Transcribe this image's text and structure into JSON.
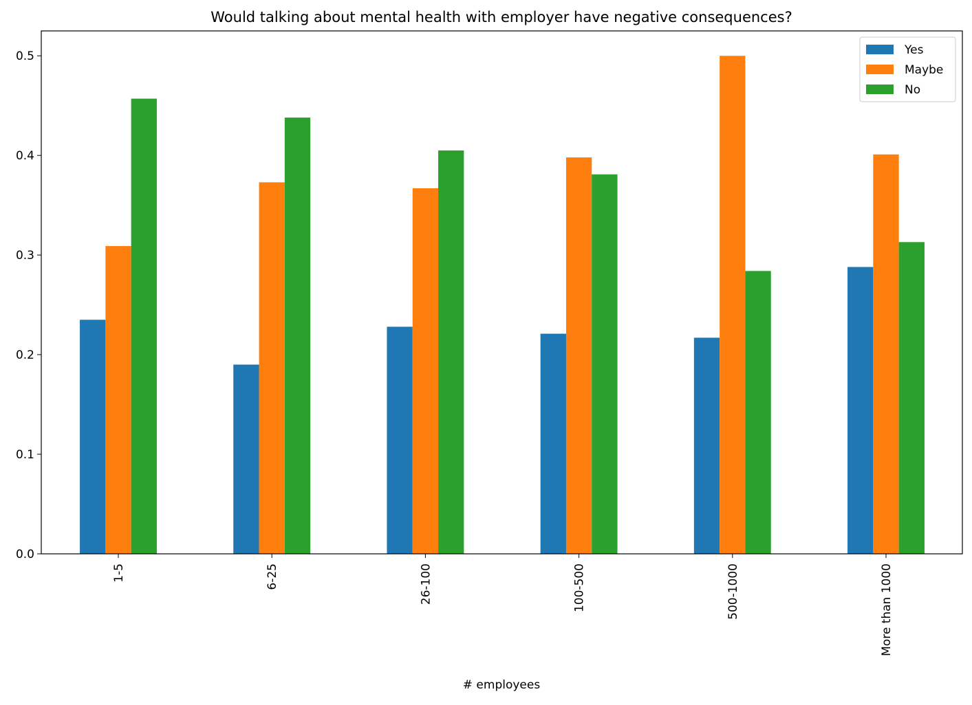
{
  "chart_data": {
    "type": "bar",
    "title": "Would talking about mental health with employer have negative consequences?",
    "xlabel": "# employees",
    "ylabel": "",
    "categories": [
      "1-5",
      "6-25",
      "26-100",
      "100-500",
      "500-1000",
      "More than 1000"
    ],
    "series": [
      {
        "name": "Yes",
        "color": "#1f77b4",
        "values": [
          0.235,
          0.19,
          0.228,
          0.221,
          0.217,
          0.288
        ]
      },
      {
        "name": "Maybe",
        "color": "#ff7f0e",
        "values": [
          0.309,
          0.373,
          0.367,
          0.398,
          0.5,
          0.401
        ]
      },
      {
        "name": "No",
        "color": "#2ca02c",
        "values": [
          0.457,
          0.438,
          0.405,
          0.381,
          0.284,
          0.313
        ]
      }
    ],
    "ylim": [
      0,
      0.525
    ],
    "yticks": [
      "0.0",
      "0.1",
      "0.2",
      "0.3",
      "0.4",
      "0.5"
    ],
    "ytick_values": [
      0,
      0.1,
      0.2,
      0.3,
      0.4,
      0.5
    ],
    "grid": false,
    "legend_position": "top-right",
    "xtick_rotation": "vertical"
  }
}
